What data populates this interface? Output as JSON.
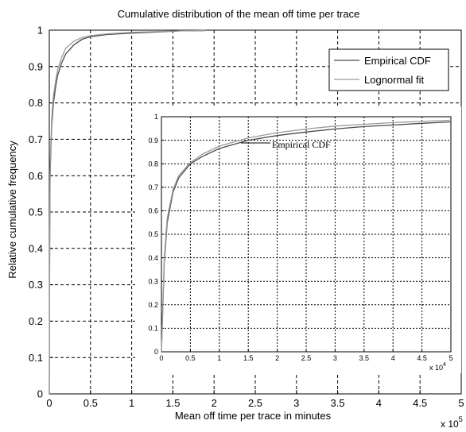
{
  "chart_data": [
    {
      "type": "line",
      "title": "Cumulative distribution of the mean off time per trace",
      "xlabel": "Mean off time per trace in minutes",
      "ylabel": "Relative cumulative frequency",
      "x_multiplier": "x 10",
      "x_exponent": "5",
      "xlim": [
        0,
        5
      ],
      "ylim": [
        0,
        1
      ],
      "x_ticks": [
        "0",
        "0.5",
        "1",
        "1.5",
        "2",
        "2.5",
        "3",
        "3.5",
        "4",
        "4.5",
        "5"
      ],
      "y_ticks": [
        "0",
        "0.1",
        "0.2",
        "0.3",
        "0.4",
        "0.5",
        "0.6",
        "0.7",
        "0.8",
        "0.9",
        "1"
      ],
      "grid": true,
      "legend_position": "top-right",
      "series": [
        {
          "name": "Empirical CDF",
          "x": [
            0,
            0.005,
            0.01,
            0.02,
            0.03,
            0.05,
            0.08,
            0.1,
            0.15,
            0.2,
            0.3,
            0.4,
            0.5,
            0.7,
            1.0,
            1.3,
            1.6,
            1.9
          ],
          "y": [
            0,
            0.42,
            0.6,
            0.68,
            0.74,
            0.8,
            0.85,
            0.875,
            0.91,
            0.935,
            0.96,
            0.975,
            0.982,
            0.988,
            0.992,
            0.995,
            0.998,
            0.999
          ]
        },
        {
          "name": "Lognormal fit",
          "x": [
            0,
            0.005,
            0.01,
            0.02,
            0.03,
            0.05,
            0.08,
            0.1,
            0.15,
            0.2,
            0.3,
            0.4,
            0.5,
            0.7,
            1.0,
            1.3,
            1.6,
            1.9
          ],
          "y": [
            0,
            0.45,
            0.62,
            0.7,
            0.76,
            0.82,
            0.865,
            0.89,
            0.925,
            0.95,
            0.97,
            0.98,
            0.985,
            0.99,
            0.994,
            0.996,
            0.998,
            0.999
          ]
        }
      ]
    },
    {
      "type": "line",
      "xlim": [
        0,
        5
      ],
      "ylim": [
        0,
        1
      ],
      "x_multiplier": "x 10",
      "x_exponent": "4",
      "x_ticks": [
        "0",
        "0.5",
        "1",
        "1.5",
        "2",
        "2.5",
        "3",
        "3.5",
        "4",
        "4.5",
        "5"
      ],
      "y_ticks": [
        "0",
        "0.1",
        "0.2",
        "0.3",
        "0.4",
        "0.5",
        "0.6",
        "0.7",
        "0.8",
        "0.9",
        "1"
      ],
      "grid": true,
      "annotation": "Empirical CDF",
      "series": [
        {
          "x": [
            0,
            0.05,
            0.1,
            0.2,
            0.3,
            0.5,
            0.7,
            1.0,
            1.5,
            2.0,
            2.5,
            3.0,
            3.5,
            4.0,
            4.5,
            5.0
          ],
          "y": [
            0,
            0.38,
            0.55,
            0.68,
            0.74,
            0.8,
            0.83,
            0.865,
            0.9,
            0.92,
            0.935,
            0.948,
            0.958,
            0.965,
            0.972,
            0.978
          ]
        },
        {
          "x": [
            0,
            0.05,
            0.1,
            0.2,
            0.3,
            0.5,
            0.7,
            1.0,
            1.5,
            2.0,
            2.5,
            3.0,
            3.5,
            4.0,
            4.5,
            5.0
          ],
          "y": [
            0,
            0.4,
            0.57,
            0.69,
            0.75,
            0.805,
            0.84,
            0.875,
            0.91,
            0.932,
            0.948,
            0.96,
            0.968,
            0.975,
            0.98,
            0.985
          ]
        }
      ]
    }
  ]
}
